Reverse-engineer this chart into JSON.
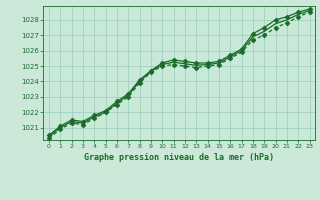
{
  "xlabel": "Graphe pression niveau de la mer (hPa)",
  "xlim": [
    -0.5,
    23.5
  ],
  "ylim": [
    1020.2,
    1028.9
  ],
  "yticks": [
    1021,
    1022,
    1023,
    1024,
    1025,
    1026,
    1027,
    1028
  ],
  "xticks": [
    0,
    1,
    2,
    3,
    4,
    5,
    6,
    7,
    8,
    9,
    10,
    11,
    12,
    13,
    14,
    15,
    16,
    17,
    18,
    19,
    20,
    21,
    22,
    23
  ],
  "bg_color": "#cce8d8",
  "plot_bg_color": "#c8e8d8",
  "grid_color": "#99ccbb",
  "line_color": "#1a6b2a",
  "series1_x": [
    0,
    1,
    2,
    3,
    4,
    5,
    6,
    7,
    8,
    9,
    10,
    11,
    12,
    13,
    14,
    15,
    16,
    17,
    18,
    19,
    20,
    21,
    22,
    23
  ],
  "series1_y": [
    1020.5,
    1021.1,
    1021.5,
    1021.4,
    1021.8,
    1022.1,
    1022.7,
    1023.2,
    1024.1,
    1024.7,
    1025.2,
    1025.4,
    1025.3,
    1025.2,
    1025.2,
    1025.3,
    1025.7,
    1026.1,
    1027.1,
    1027.5,
    1028.0,
    1028.2,
    1028.5,
    1028.7
  ],
  "series2_x": [
    0,
    1,
    2,
    3,
    4,
    5,
    6,
    7,
    8,
    9,
    10,
    11,
    12,
    13,
    14,
    15,
    16,
    17,
    18,
    19,
    20,
    21,
    22,
    23
  ],
  "series2_y": [
    1020.3,
    1020.9,
    1021.3,
    1021.2,
    1021.6,
    1022.0,
    1022.5,
    1023.0,
    1023.9,
    1024.6,
    1025.0,
    1025.1,
    1025.0,
    1024.9,
    1025.0,
    1025.1,
    1025.5,
    1025.9,
    1026.7,
    1027.0,
    1027.5,
    1027.8,
    1028.2,
    1028.5
  ],
  "series3_x": [
    0,
    1,
    2,
    3,
    4,
    5,
    6,
    7,
    8,
    9,
    10,
    11,
    12,
    13,
    14,
    15,
    16,
    17,
    18,
    19,
    20,
    21,
    22,
    23
  ],
  "series3_y": [
    1020.4,
    1021.0,
    1021.4,
    1021.3,
    1021.7,
    1022.0,
    1022.6,
    1023.1,
    1024.0,
    1024.65,
    1025.1,
    1025.25,
    1025.15,
    1025.05,
    1025.1,
    1025.2,
    1025.6,
    1026.0,
    1026.9,
    1027.25,
    1027.75,
    1028.0,
    1028.35,
    1028.6
  ]
}
